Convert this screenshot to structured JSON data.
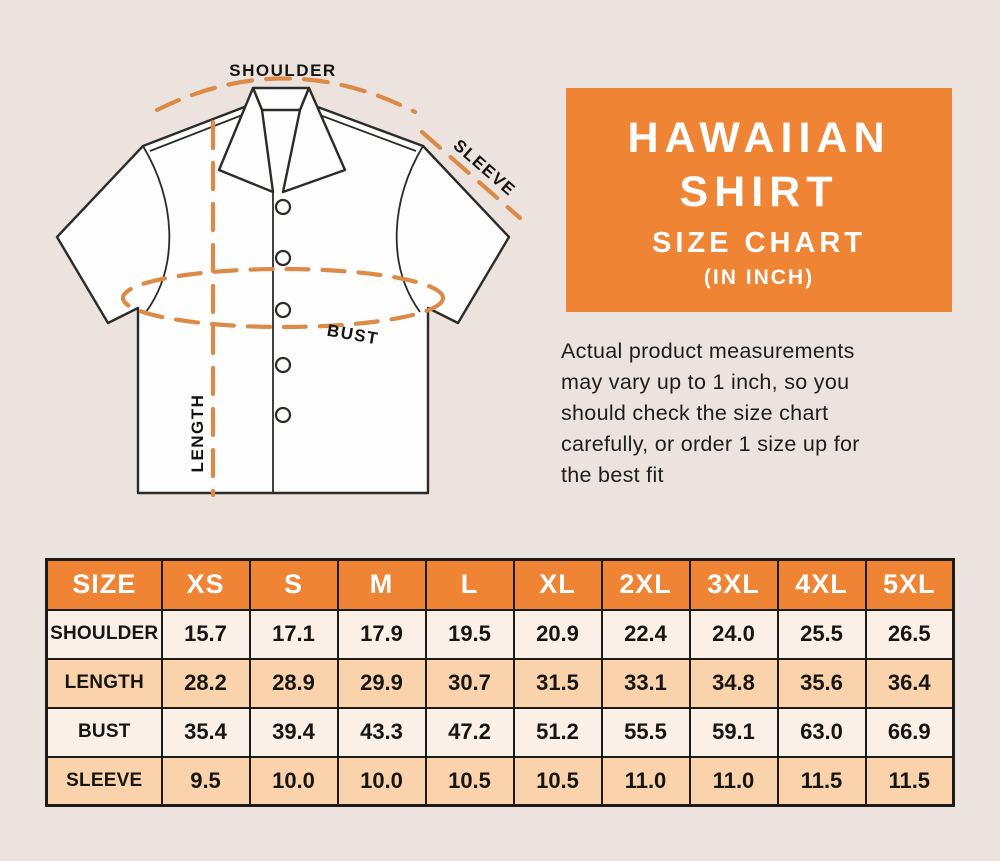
{
  "page": {
    "background": "#ece3df"
  },
  "colors": {
    "accent_orange": "#ef8435",
    "dash_orange": "#db8a47",
    "row_peach": "#fad2ac",
    "row_cream": "#faf0e8",
    "border_dark": "#1d1b18",
    "title_text": "#ffffff"
  },
  "title_box": {
    "line1": "HAWAIIAN",
    "line2": "SHIRT",
    "line3": "SIZE CHART",
    "line4": "(IN INCH)"
  },
  "description": {
    "lines": [
      "Actual product measurements",
      "may vary up to 1 inch, so you",
      "should check the size chart",
      "carefully, or order 1 size up for",
      "the best fit"
    ]
  },
  "diagram": {
    "shoulder_label": "SHOULDER",
    "sleeve_label": "SLEEVE",
    "bust_label": "BUST",
    "length_label": "LENGTH"
  },
  "chart_data": {
    "type": "table",
    "title": "HAWAIIAN SHIRT SIZE CHART (IN INCH)",
    "columns": [
      "SIZE",
      "XS",
      "S",
      "M",
      "L",
      "XL",
      "2XL",
      "3XL",
      "4XL",
      "5XL"
    ],
    "rows": [
      {
        "label": "SHOULDER",
        "values": [
          "15.7",
          "17.1",
          "17.9",
          "19.5",
          "20.9",
          "22.4",
          "24.0",
          "25.5",
          "26.5"
        ]
      },
      {
        "label": "LENGTH",
        "values": [
          "28.2",
          "28.9",
          "29.9",
          "30.7",
          "31.5",
          "33.1",
          "34.8",
          "35.6",
          "36.4"
        ]
      },
      {
        "label": "BUST",
        "values": [
          "35.4",
          "39.4",
          "43.3",
          "47.2",
          "51.2",
          "55.5",
          "59.1",
          "63.0",
          "66.9"
        ]
      },
      {
        "label": "SLEEVE",
        "values": [
          "9.5",
          "10.0",
          "10.0",
          "10.5",
          "10.5",
          "11.0",
          "11.0",
          "11.5",
          "11.5"
        ]
      }
    ]
  }
}
